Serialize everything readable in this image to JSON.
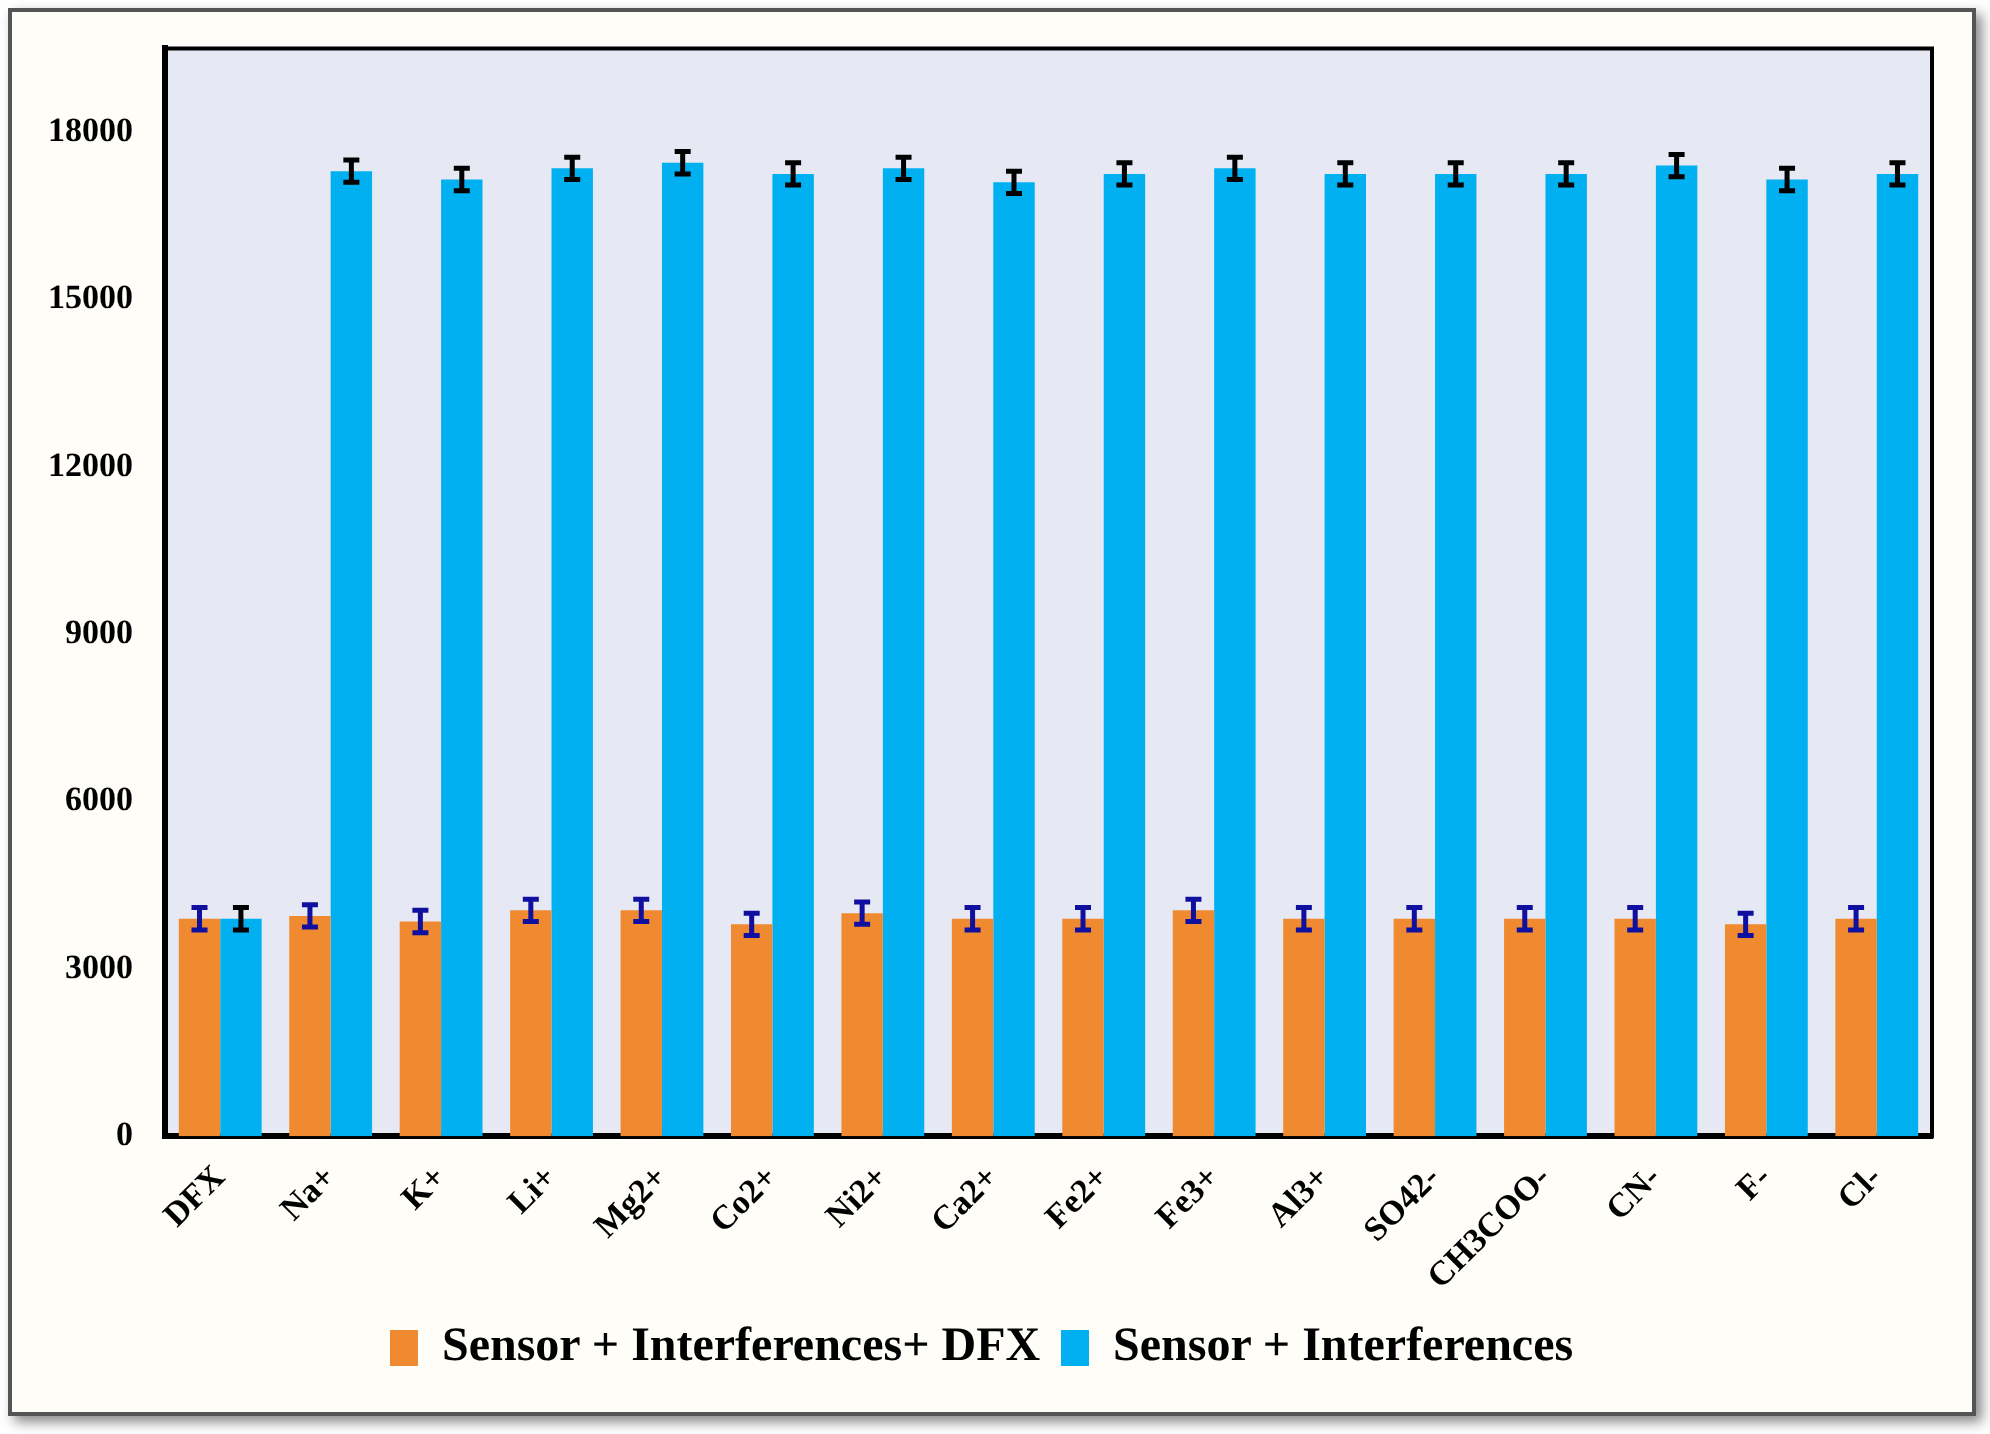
{
  "chart_data": {
    "type": "bar",
    "categories": [
      "DFX",
      "Na+",
      "K+",
      "Li+",
      "Mg2+",
      "Co2+",
      "Ni2+",
      "Ca2+",
      "Fe2+",
      "Fe3+",
      "Al3+",
      "SO42-",
      "CH3COO-",
      "CN-",
      "F-",
      "Cl-"
    ],
    "series": [
      {
        "name": "Sensor + Interferences+ DFX",
        "color": "#f08a30",
        "values": [
          3900,
          3950,
          3850,
          4050,
          4050,
          3800,
          4000,
          3900,
          3900,
          4050,
          3900,
          3900,
          3900,
          3900,
          3800,
          3900
        ],
        "errors": [
          200,
          200,
          200,
          200,
          200,
          200,
          200,
          200,
          200,
          200,
          200,
          200,
          200,
          200,
          200,
          200
        ]
      },
      {
        "name": "Sensor + Interferences",
        "color": "#00b0f0",
        "values": [
          3900,
          17300,
          17150,
          17350,
          17450,
          17250,
          17350,
          17100,
          17250,
          17350,
          17250,
          17250,
          17250,
          17400,
          17150,
          17250
        ],
        "errors": [
          200,
          200,
          200,
          200,
          200,
          200,
          200,
          200,
          200,
          200,
          200,
          200,
          200,
          200,
          200,
          200
        ]
      }
    ],
    "ylim": [
      0,
      19500
    ],
    "yticks": [
      0,
      3000,
      6000,
      9000,
      12000,
      15000,
      18000
    ],
    "grid": false,
    "legend": "bottom"
  }
}
